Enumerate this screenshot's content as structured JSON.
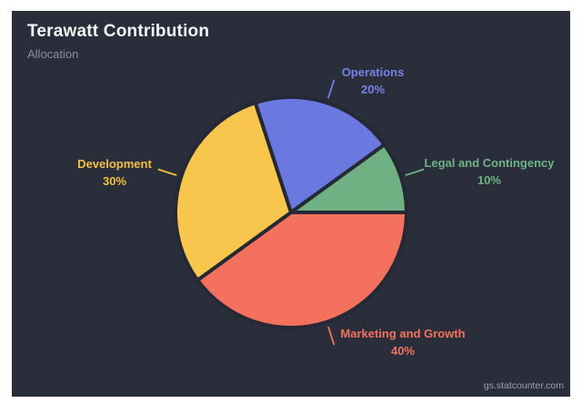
{
  "header": {
    "title": "Terawatt Contribution",
    "subtitle": "Allocation"
  },
  "watermark": "gs.statcounter.com",
  "theme": {
    "page_bg": "#ffffff",
    "panel_bg": "#2a2e3a",
    "slice_border": "#252935",
    "title_color": "#f4f5f7",
    "subtitle_color": "#878e9a",
    "watermark_color": "#99a0ac"
  },
  "chart_data": {
    "type": "pie",
    "title": "Terawatt Contribution",
    "subtitle": "Allocation",
    "unit": "%",
    "legend": "none",
    "direction": "clockwise",
    "start_angle_deg_from_top": -18,
    "categories": [
      "Operations",
      "Legal and Contingency",
      "Marketing and Growth",
      "Development"
    ],
    "values": [
      20,
      10,
      40,
      30
    ],
    "slices": [
      {
        "label": "Operations",
        "value": 20,
        "pct_label": "20%",
        "color": "#6b78e0",
        "label_color": "#7781e6"
      },
      {
        "label": "Legal and Contingency",
        "value": 10,
        "pct_label": "10%",
        "color": "#70b183",
        "label_color": "#6db386"
      },
      {
        "label": "Marketing and Growth",
        "value": 40,
        "pct_label": "40%",
        "color": "#f4715e",
        "label_color": "#f4715e"
      },
      {
        "label": "Development",
        "value": 30,
        "pct_label": "30%",
        "color": "#f8c64c",
        "label_color": "#f2bf43"
      }
    ]
  }
}
